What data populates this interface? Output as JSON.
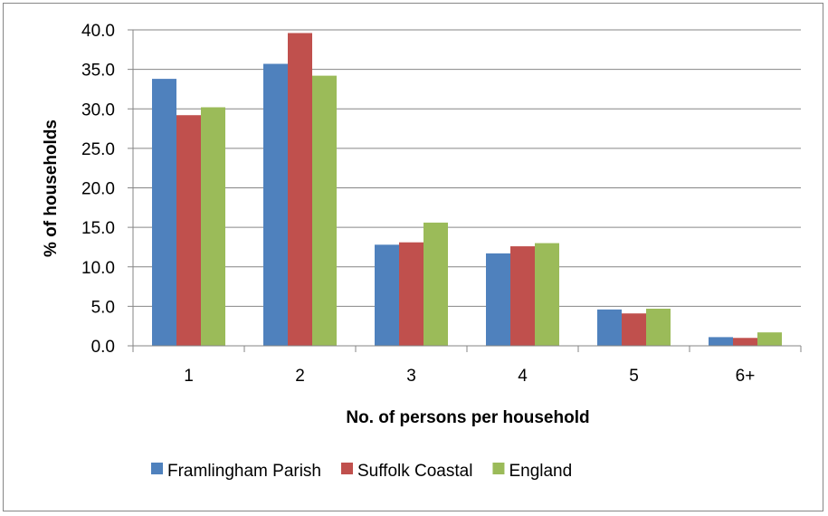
{
  "chart_data": {
    "type": "bar",
    "categories": [
      "1",
      "2",
      "3",
      "4",
      "5",
      "6+"
    ],
    "series": [
      {
        "name": "Framlingham Parish",
        "color": "#4f81bd",
        "values": [
          33.8,
          35.7,
          12.8,
          11.7,
          4.6,
          1.1
        ]
      },
      {
        "name": "Suffolk Coastal",
        "color": "#c0504d",
        "values": [
          29.2,
          39.6,
          13.1,
          12.6,
          4.1,
          1.0
        ]
      },
      {
        "name": "England",
        "color": "#9bbb59",
        "values": [
          30.2,
          34.2,
          15.6,
          13.0,
          4.7,
          1.7
        ]
      }
    ],
    "xlabel": "No. of persons per household",
    "ylabel": "% of households",
    "ylim": [
      0,
      40
    ],
    "yticks": [
      "0.0",
      "5.0",
      "10.0",
      "15.0",
      "20.0",
      "25.0",
      "30.0",
      "35.0",
      "40.0"
    ],
    "grid": true,
    "legend_position": "bottom"
  }
}
